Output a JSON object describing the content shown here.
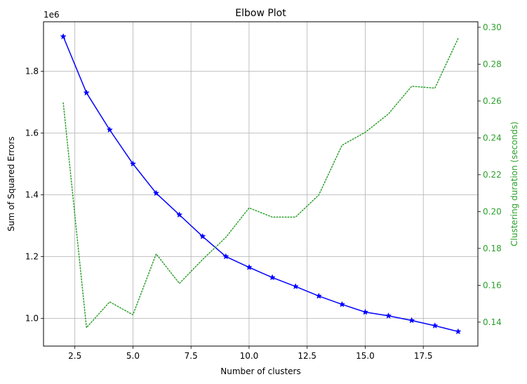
{
  "chart_data": {
    "type": "line",
    "title": "Elbow Plot",
    "xlabel": "Number of clusters",
    "ylabel": "Sum of Squared Errors",
    "ylabel_right": "Clustering duration (seconds)",
    "y_offset_label": "1e6",
    "xlim": [
      1.15,
      19.85
    ],
    "ylim": [
      0.91,
      1.96
    ],
    "ylim_right": [
      0.127,
      0.303
    ],
    "x_ticks": [
      2.5,
      5.0,
      7.5,
      10.0,
      12.5,
      15.0,
      17.5
    ],
    "x_tick_labels": [
      "2.5",
      "5.0",
      "7.5",
      "10.0",
      "12.5",
      "15.0",
      "17.5"
    ],
    "y_ticks": [
      1.0,
      1.2,
      1.4,
      1.6,
      1.8
    ],
    "y_tick_labels": [
      "1.0",
      "1.2",
      "1.4",
      "1.6",
      "1.8"
    ],
    "y_right_ticks": [
      0.14,
      0.16,
      0.18,
      0.2,
      0.22,
      0.24,
      0.26,
      0.28,
      0.3
    ],
    "y_right_tick_labels": [
      "0.14",
      "0.16",
      "0.18",
      "0.20",
      "0.22",
      "0.24",
      "0.26",
      "0.28",
      "0.30"
    ],
    "grid": true,
    "x": [
      2,
      3,
      4,
      5,
      6,
      7,
      8,
      9,
      10,
      11,
      12,
      13,
      14,
      15,
      16,
      17,
      18,
      19
    ],
    "series": [
      {
        "axis": "left",
        "color": "#0000ff",
        "style": "solid",
        "marker": "star",
        "values": [
          1.912,
          1.73,
          1.61,
          1.5,
          1.405,
          1.335,
          1.265,
          1.2,
          1.165,
          1.132,
          1.103,
          1.072,
          1.045,
          1.02,
          1.008,
          0.993,
          0.976,
          0.957
        ]
      },
      {
        "axis": "right",
        "color": "#2ca02c",
        "style": "dotted",
        "marker": "none",
        "values": [
          0.259,
          0.137,
          0.151,
          0.144,
          0.177,
          0.161,
          0.174,
          0.186,
          0.202,
          0.197,
          0.197,
          0.209,
          0.236,
          0.243,
          0.253,
          0.268,
          0.267,
          0.294
        ]
      }
    ]
  }
}
